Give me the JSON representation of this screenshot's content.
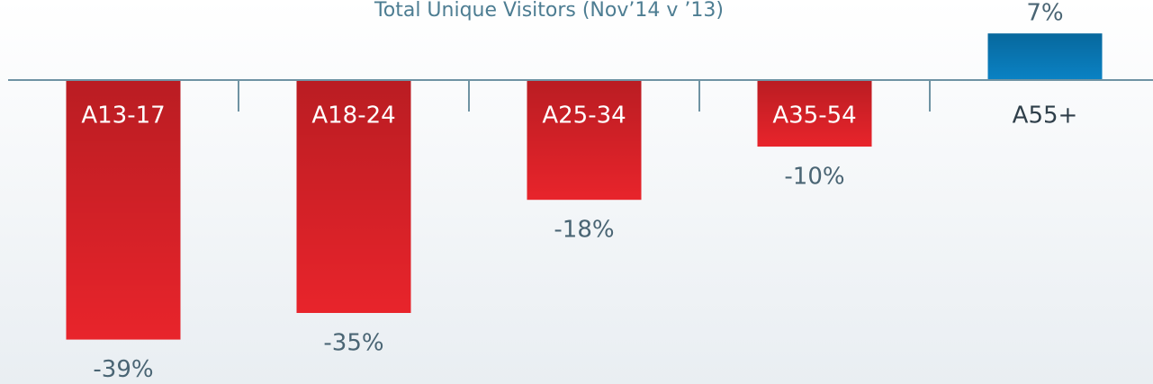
{
  "chart_data": {
    "type": "bar",
    "title": "Total Unique Visitors (Nov’14 v ’13)",
    "categories": [
      "A13-17",
      "A18-24",
      "A25-34",
      "A35-54",
      "A55+"
    ],
    "values": [
      -39,
      -35,
      -18,
      -10,
      7
    ],
    "value_labels": [
      "-39%",
      "-35%",
      "-18%",
      "-10%",
      "7%"
    ],
    "colors": [
      "#e8242b",
      "#e8242b",
      "#e8242b",
      "#e8242b",
      "#0a82c4"
    ],
    "ylim": [
      -45,
      10
    ]
  }
}
